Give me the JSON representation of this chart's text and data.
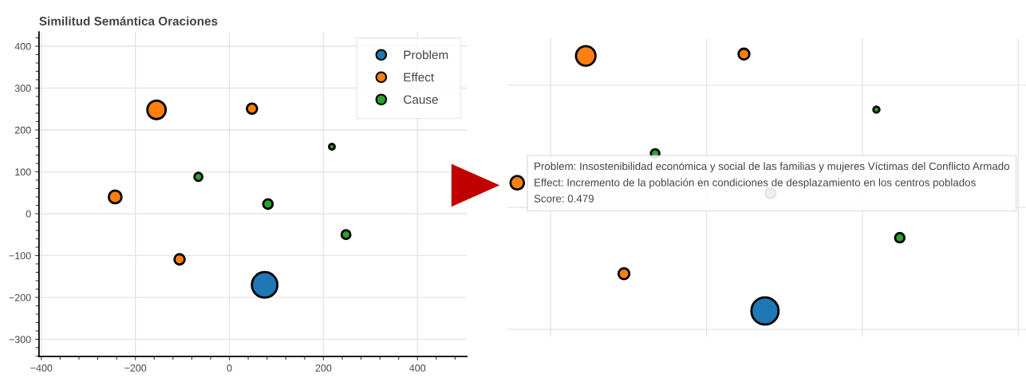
{
  "chart_data": [
    {
      "type": "bubble",
      "title": "Similitud Semántica Oraciones",
      "xlim": [
        -405,
        505
      ],
      "ylim": [
        -341,
        434
      ],
      "xticks": [
        -400,
        -200,
        0,
        200,
        400
      ],
      "yticks": [
        -300,
        -200,
        -100,
        0,
        100,
        200,
        300,
        400
      ],
      "grid": true,
      "legend": "top right",
      "series": [
        {
          "name": "Problem",
          "color": "#1f77b4",
          "x": [
            75
          ],
          "values": [
            -170
          ],
          "sizes": [
            1
          ]
        },
        {
          "name": "Effect",
          "color": "#ff7f0e",
          "x": [
            -155,
            48,
            -243,
            -106
          ],
          "values": [
            248,
            251,
            40,
            -109
          ],
          "sizes": [
            0.52,
            0.16,
            0.25,
            0.16
          ]
        },
        {
          "name": "Cause",
          "color": "#2ca02c",
          "x": [
            218,
            -66,
            82,
            248
          ],
          "values": [
            160,
            88,
            23,
            -50
          ],
          "sizes": [
            0.05,
            0.1,
            0.14,
            0.12
          ]
        }
      ]
    },
    {
      "type": "other",
      "annotations": [
        "Problem: Insostenibilidad económica y social de las familias y mujeres Víctimas del Conflicto Armado",
        "Effect: Incremento de la población en condiciones de desplazamiento en los centros poblados",
        "Score: 0.479"
      ]
    }
  ]
}
